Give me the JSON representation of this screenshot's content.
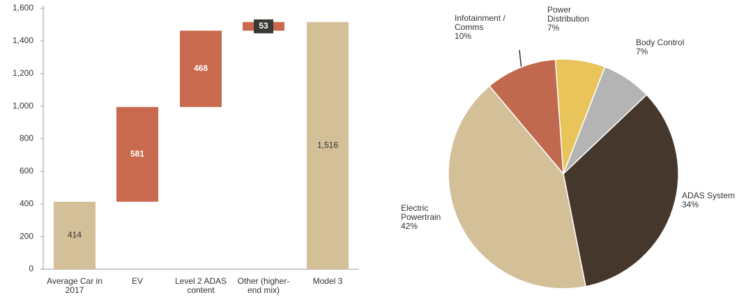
{
  "chart_data": [
    {
      "type": "waterfall",
      "categories": [
        "Average Car in 2017",
        "EV",
        "Level 2 ADAS content",
        "Other (higher-end mix)",
        "Model 3"
      ],
      "values": [
        414,
        581,
        468,
        53,
        1516
      ],
      "value_labels": [
        "414",
        "581",
        "468",
        "53",
        "1,516"
      ],
      "colors": [
        "#d3bf98",
        "#c9694e",
        "#c9694e",
        "#c9694e",
        "#d3bf98"
      ],
      "ylim": [
        0,
        1600
      ],
      "yticks": [
        0,
        200,
        400,
        600,
        800,
        {
          "value": 1000,
          "label": "1,000"
        },
        {
          "value": 1200,
          "label": "1,200"
        },
        {
          "value": 1400,
          "label": "1,400"
        },
        {
          "value": 1600,
          "label": "1,600"
        }
      ]
    },
    {
      "type": "pie",
      "categories": [
        "Power Distribution",
        "Body Control",
        "ADAS System",
        "Electric Powertrain",
        "Infotainment / Comms"
      ],
      "values": [
        7,
        7,
        34,
        42,
        10
      ],
      "value_labels": [
        "7%",
        "7%",
        "34%",
        "42%",
        "10%"
      ],
      "colors": [
        "#e8c45a",
        "#b4b4b4",
        "#45372b",
        "#d3bf98",
        "#c0694e"
      ]
    }
  ]
}
